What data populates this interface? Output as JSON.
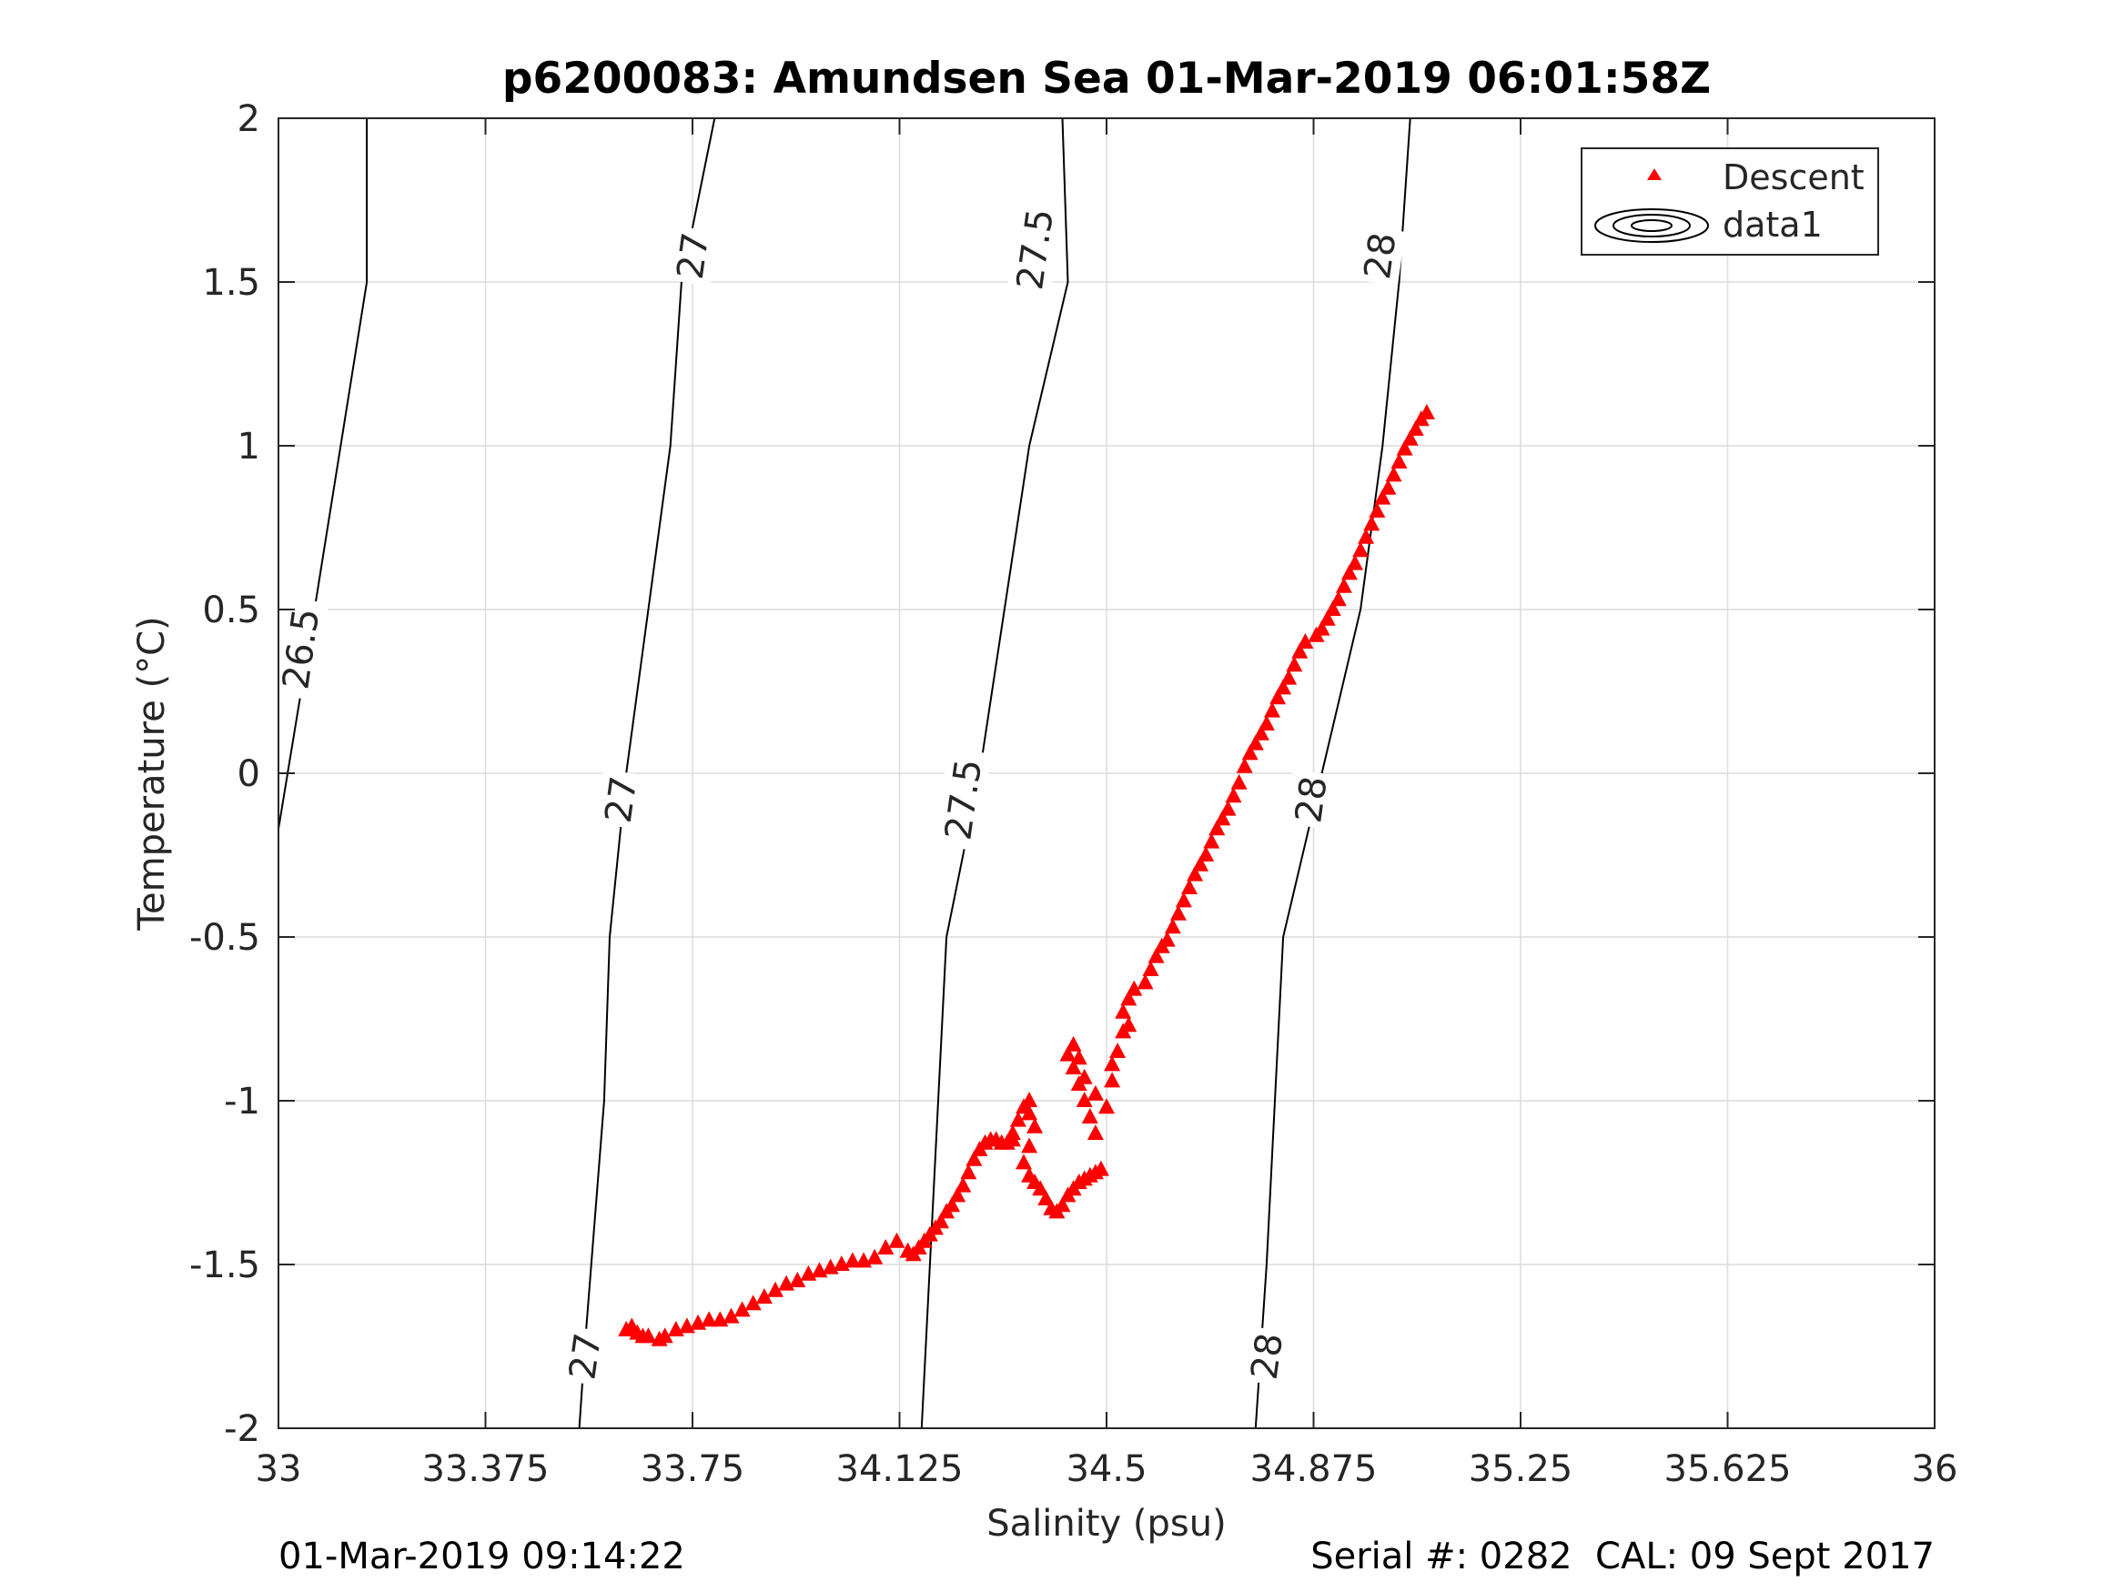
{
  "chart_data": {
    "type": "scatter",
    "title": "p6200083: Amundsen Sea 01-Mar-2019 06:01:58Z",
    "xlabel": "Salinity (psu)",
    "ylabel": "Temperature (°C)",
    "xlim": [
      33,
      36
    ],
    "ylim": [
      -2,
      2
    ],
    "xticks": [
      33,
      33.375,
      33.75,
      34.125,
      34.5,
      34.875,
      35.25,
      35.625,
      36
    ],
    "xtick_labels": [
      "33",
      "33.375",
      "33.75",
      "34.125",
      "34.5",
      "34.875",
      "35.25",
      "35.625",
      "36"
    ],
    "yticks": [
      -2,
      -1.5,
      -1,
      -0.5,
      0,
      0.5,
      1,
      1.5,
      2
    ],
    "ytick_labels": [
      "-2",
      "-1.5",
      "-1",
      "-0.5",
      "0",
      "0.5",
      "1",
      "1.5",
      "2"
    ],
    "grid": true,
    "legend": {
      "location": "top-right",
      "entries": [
        {
          "label": "Descent",
          "marker": "triangle",
          "color": "#ff0000"
        },
        {
          "label": "data1",
          "marker": "contour",
          "color": "#000000"
        }
      ]
    },
    "series": [
      {
        "name": "Descent",
        "color": "#ff0000",
        "marker": "triangle",
        "points": [
          [
            33.63,
            -1.7
          ],
          [
            33.64,
            -1.69
          ],
          [
            33.65,
            -1.71
          ],
          [
            33.66,
            -1.72
          ],
          [
            33.67,
            -1.72
          ],
          [
            33.69,
            -1.73
          ],
          [
            33.7,
            -1.72
          ],
          [
            33.72,
            -1.7
          ],
          [
            33.74,
            -1.69
          ],
          [
            33.76,
            -1.68
          ],
          [
            33.78,
            -1.67
          ],
          [
            33.8,
            -1.67
          ],
          [
            33.82,
            -1.66
          ],
          [
            33.84,
            -1.64
          ],
          [
            33.86,
            -1.62
          ],
          [
            33.88,
            -1.6
          ],
          [
            33.9,
            -1.58
          ],
          [
            33.92,
            -1.56
          ],
          [
            33.94,
            -1.55
          ],
          [
            33.96,
            -1.53
          ],
          [
            33.98,
            -1.52
          ],
          [
            34.0,
            -1.51
          ],
          [
            34.02,
            -1.5
          ],
          [
            34.04,
            -1.49
          ],
          [
            34.06,
            -1.49
          ],
          [
            34.08,
            -1.48
          ],
          [
            34.1,
            -1.45
          ],
          [
            34.12,
            -1.43
          ],
          [
            34.14,
            -1.46
          ],
          [
            34.15,
            -1.47
          ],
          [
            34.16,
            -1.45
          ],
          [
            34.17,
            -1.43
          ],
          [
            34.18,
            -1.41
          ],
          [
            34.19,
            -1.39
          ],
          [
            34.2,
            -1.37
          ],
          [
            34.21,
            -1.34
          ],
          [
            34.22,
            -1.32
          ],
          [
            34.23,
            -1.29
          ],
          [
            34.24,
            -1.26
          ],
          [
            34.25,
            -1.22
          ],
          [
            34.26,
            -1.18
          ],
          [
            34.27,
            -1.15
          ],
          [
            34.28,
            -1.13
          ],
          [
            34.29,
            -1.12
          ],
          [
            34.3,
            -1.12
          ],
          [
            34.31,
            -1.13
          ],
          [
            34.32,
            -1.13
          ],
          [
            34.33,
            -1.12
          ],
          [
            34.33,
            -1.1
          ],
          [
            34.34,
            -1.06
          ],
          [
            34.35,
            -1.02
          ],
          [
            34.36,
            -1.0
          ],
          [
            34.36,
            -1.04
          ],
          [
            34.37,
            -1.08
          ],
          [
            34.36,
            -1.14
          ],
          [
            34.35,
            -1.19
          ],
          [
            34.36,
            -1.23
          ],
          [
            34.37,
            -1.25
          ],
          [
            34.38,
            -1.27
          ],
          [
            34.39,
            -1.3
          ],
          [
            34.4,
            -1.33
          ],
          [
            34.41,
            -1.34
          ],
          [
            34.42,
            -1.32
          ],
          [
            34.43,
            -1.29
          ],
          [
            34.44,
            -1.27
          ],
          [
            34.45,
            -1.25
          ],
          [
            34.46,
            -1.24
          ],
          [
            34.47,
            -1.23
          ],
          [
            34.48,
            -1.22
          ],
          [
            34.49,
            -1.21
          ],
          [
            34.48,
            -1.1
          ],
          [
            34.47,
            -1.05
          ],
          [
            34.46,
            -1.0
          ],
          [
            34.45,
            -0.95
          ],
          [
            34.44,
            -0.9
          ],
          [
            34.43,
            -0.86
          ],
          [
            34.44,
            -0.83
          ],
          [
            34.45,
            -0.87
          ],
          [
            34.46,
            -0.93
          ],
          [
            34.48,
            -0.98
          ],
          [
            34.5,
            -1.02
          ],
          [
            34.51,
            -0.94
          ],
          [
            34.51,
            -0.89
          ],
          [
            34.52,
            -0.85
          ],
          [
            34.53,
            -0.79
          ],
          [
            34.54,
            -0.77
          ],
          [
            34.53,
            -0.73
          ],
          [
            34.54,
            -0.69
          ],
          [
            34.55,
            -0.66
          ],
          [
            34.57,
            -0.64
          ],
          [
            34.58,
            -0.6
          ],
          [
            34.59,
            -0.56
          ],
          [
            34.6,
            -0.53
          ],
          [
            34.61,
            -0.51
          ],
          [
            34.62,
            -0.47
          ],
          [
            34.63,
            -0.43
          ],
          [
            34.64,
            -0.39
          ],
          [
            34.65,
            -0.35
          ],
          [
            34.66,
            -0.31
          ],
          [
            34.67,
            -0.28
          ],
          [
            34.68,
            -0.25
          ],
          [
            34.69,
            -0.21
          ],
          [
            34.7,
            -0.17
          ],
          [
            34.71,
            -0.14
          ],
          [
            34.72,
            -0.11
          ],
          [
            34.73,
            -0.07
          ],
          [
            34.74,
            -0.03
          ],
          [
            34.75,
            0.02
          ],
          [
            34.76,
            0.06
          ],
          [
            34.77,
            0.09
          ],
          [
            34.78,
            0.12
          ],
          [
            34.79,
            0.15
          ],
          [
            34.8,
            0.19
          ],
          [
            34.81,
            0.23
          ],
          [
            34.82,
            0.26
          ],
          [
            34.83,
            0.29
          ],
          [
            34.84,
            0.33
          ],
          [
            34.85,
            0.37
          ],
          [
            34.86,
            0.4
          ],
          [
            34.88,
            0.42
          ],
          [
            34.89,
            0.44
          ],
          [
            34.9,
            0.47
          ],
          [
            34.91,
            0.5
          ],
          [
            34.92,
            0.53
          ],
          [
            34.93,
            0.57
          ],
          [
            34.94,
            0.61
          ],
          [
            34.95,
            0.64
          ],
          [
            34.96,
            0.68
          ],
          [
            34.97,
            0.72
          ],
          [
            34.98,
            0.76
          ],
          [
            34.99,
            0.8
          ],
          [
            35.0,
            0.84
          ],
          [
            35.01,
            0.87
          ],
          [
            35.02,
            0.91
          ],
          [
            35.03,
            0.95
          ],
          [
            35.04,
            0.99
          ],
          [
            35.05,
            1.02
          ],
          [
            35.06,
            1.05
          ],
          [
            35.07,
            1.08
          ],
          [
            35.08,
            1.1
          ]
        ]
      }
    ],
    "contours": [
      {
        "label": "26.5",
        "points": [
          [
            33.0,
            -0.17
          ],
          [
            33.04,
            0.24
          ],
          [
            33.07,
            0.55
          ],
          [
            33.16,
            1.5
          ],
          [
            33.16,
            2.0
          ]
        ]
      },
      {
        "label": "27",
        "points": [
          [
            33.545,
            -2.0
          ],
          [
            33.555,
            -1.75
          ],
          [
            33.59,
            -1.0
          ],
          [
            33.6,
            -0.5
          ],
          [
            33.63,
            0.0
          ],
          [
            33.71,
            1.0
          ],
          [
            33.73,
            1.5
          ],
          [
            33.79,
            2.0
          ]
        ]
      },
      {
        "label": "27.5",
        "points": [
          [
            34.165,
            -2.0
          ],
          [
            34.18,
            -1.5
          ],
          [
            34.21,
            -0.5
          ],
          [
            34.27,
            0.0
          ],
          [
            34.36,
            1.0
          ],
          [
            34.43,
            1.5
          ],
          [
            34.42,
            2.0
          ]
        ]
      },
      {
        "label": "28",
        "points": [
          [
            34.77,
            -2.0
          ],
          [
            34.79,
            -1.5
          ],
          [
            34.82,
            -0.5
          ],
          [
            34.89,
            0.0
          ],
          [
            34.96,
            0.5
          ],
          [
            35.0,
            1.0
          ],
          [
            35.03,
            1.5
          ],
          [
            35.05,
            2.0
          ]
        ]
      }
    ],
    "contour_labels": [
      {
        "text": "26.5",
        "x": 33.04,
        "y": 0.38
      },
      {
        "text": "27",
        "x": 33.555,
        "y": -1.78
      },
      {
        "text": "27",
        "x": 33.62,
        "y": -0.08
      },
      {
        "text": "27",
        "x": 33.75,
        "y": 1.58
      },
      {
        "text": "27.5",
        "x": 34.24,
        "y": -0.08
      },
      {
        "text": "27.5",
        "x": 34.37,
        "y": 1.6
      },
      {
        "text": "28",
        "x": 34.79,
        "y": -1.78
      },
      {
        "text": "28",
        "x": 34.87,
        "y": -0.08
      },
      {
        "text": "28",
        "x": 34.995,
        "y": 1.58
      }
    ]
  },
  "footer": {
    "left": "01-Mar-2019 09:14:22",
    "right": "Serial #: 0282  CAL: 09 Sept 2017"
  }
}
